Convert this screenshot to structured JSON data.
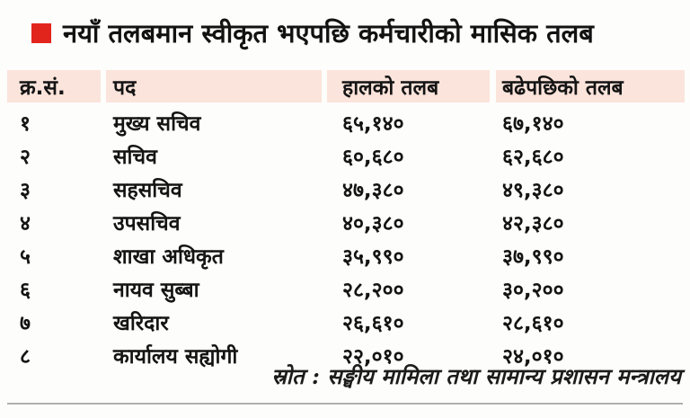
{
  "title": {
    "bullet_color": "#e2251c",
    "text": "नयाँ तलबमान स्वीकृत भएपछि कर्मचारीको मासिक तलब"
  },
  "table": {
    "header_bg": "#fbe4db",
    "headers": {
      "sn": "क्र.सं.",
      "position": "पद",
      "current": "हालको तलब",
      "increased": "बढेपछिको तलब"
    },
    "rows": [
      {
        "sn": "१",
        "position": "मुख्य सचिव",
        "current": "६५,१४०",
        "increased": "६७,१४०"
      },
      {
        "sn": "२",
        "position": "सचिव",
        "current": "६०,६८०",
        "increased": "६२,६८०"
      },
      {
        "sn": "३",
        "position": "सहसचिव",
        "current": "४७,३८०",
        "increased": "४९,३८०"
      },
      {
        "sn": "४",
        "position": "उपसचिव",
        "current": "४०,३८०",
        "increased": "४२,३८०"
      },
      {
        "sn": "५",
        "position": "शाखा अधिकृत",
        "current": "३५,९९०",
        "increased": "३७,९९०"
      },
      {
        "sn": "६",
        "position": "नायव सुब्बा",
        "current": "२८,२००",
        "increased": "३०,२००"
      },
      {
        "sn": "७",
        "position": "खरिदार",
        "current": "२६,६१०",
        "increased": "२८,६१०"
      },
      {
        "sn": "८",
        "position": "कार्यालय सह्योगी",
        "current": "२२,०१०",
        "increased": "२४,०१०"
      }
    ]
  },
  "source": "स्रोत : सङ्घीय मामिला तथा सामान्य प्रशासन मन्त्रालय",
  "chart_data": {
    "type": "table",
    "title": "नयाँ तलबमान स्वीकृत भएपछि कर्मचारीको मासिक तलब",
    "columns": [
      "क्र.सं.",
      "पद",
      "हालको तलब",
      "बढेपछिको तलब"
    ],
    "rows": [
      [
        "१",
        "मुख्य सचिव",
        "६५,१४०",
        "६७,१४०"
      ],
      [
        "२",
        "सचिव",
        "६०,६८०",
        "६२,६८०"
      ],
      [
        "३",
        "सहसचिव",
        "४७,३८०",
        "४९,३८०"
      ],
      [
        "४",
        "उपसचिव",
        "४०,३८०",
        "४२,३८०"
      ],
      [
        "५",
        "शाखा अधिकृत",
        "३५,९९०",
        "३७,९९०"
      ],
      [
        "६",
        "नायव सुब्बा",
        "२८,२००",
        "३०,२००"
      ],
      [
        "७",
        "खरिदार",
        "२६,६१०",
        "२८,६१०"
      ],
      [
        "८",
        "कार्यालय सह्योगी",
        "२२,०१०",
        "२४,०१०"
      ]
    ],
    "numeric_values": {
      "current_salary": [
        65140,
        60680,
        47380,
        40380,
        35990,
        28200,
        26610,
        22010
      ],
      "increased_salary": [
        67140,
        62680,
        49380,
        42380,
        37990,
        30200,
        28610,
        24010
      ]
    },
    "source": "स्रोत : सङ्घीय मामिला तथा सामान्य प्रशासन मन्त्रालय"
  }
}
